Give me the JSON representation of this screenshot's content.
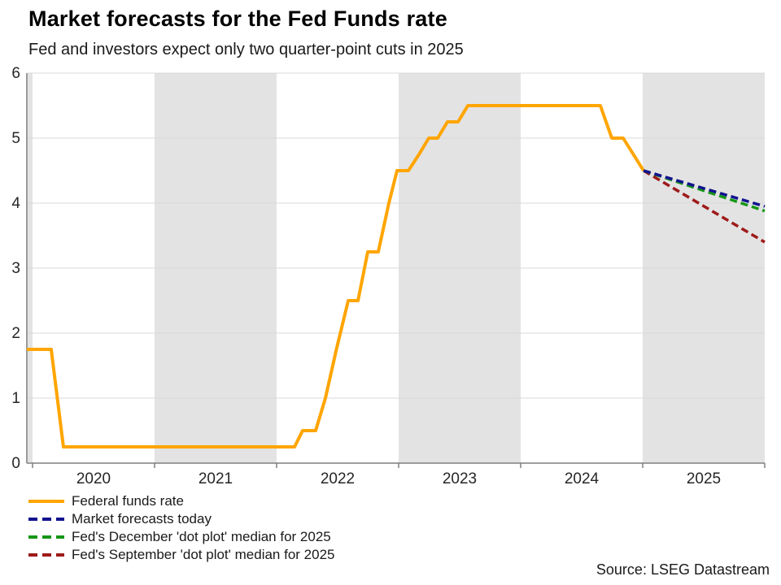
{
  "title": "Market forecasts for the Fed Funds rate",
  "subtitle": "Fed and investors expect only two quarter-point cuts in 2025",
  "source": "Source: LSEG Datastream",
  "colors": {
    "band": "#e3e3e3",
    "grid": "#d9d9d9",
    "axis": "#7f7f7f",
    "tick_text": "#262626",
    "orange": "#FFA500",
    "navy": "#12128F",
    "green": "#169616",
    "dark_red": "#9E1A1A"
  },
  "chart_data": {
    "type": "line",
    "title": "Market forecasts for the Fed Funds rate",
    "subtitle": "Fed and investors expect only two quarter-point cuts in 2025",
    "xlabel": "",
    "ylabel": "",
    "xlim": [
      2019.953,
      2026.0
    ],
    "ylim": [
      0,
      6
    ],
    "y_ticks": [
      0,
      1,
      2,
      3,
      4,
      5,
      6
    ],
    "x_tick_years": [
      2020,
      2021,
      2022,
      2023,
      2024,
      2025,
      2026
    ],
    "x_labels": [
      "2020",
      "2021",
      "2022",
      "2023",
      "2024",
      "2025"
    ],
    "grid": "horizontal",
    "legend_position": "bottom-left",
    "shaded_year_bands": [
      [
        2019.953,
        2020
      ],
      [
        2021,
        2022
      ],
      [
        2023,
        2024
      ],
      [
        2025,
        2026
      ]
    ],
    "series": [
      {
        "name": "Federal funds rate",
        "color": "#FFA500",
        "style": "solid",
        "points": [
          [
            2019.953,
            1.75
          ],
          [
            2020.153,
            1.75
          ],
          [
            2020.253,
            0.25
          ],
          [
            2022.147,
            0.25
          ],
          [
            2022.213,
            0.5
          ],
          [
            2022.32,
            0.5
          ],
          [
            2022.4,
            1.0
          ],
          [
            2022.49,
            1.75
          ],
          [
            2022.587,
            2.5
          ],
          [
            2022.667,
            2.5
          ],
          [
            2022.747,
            3.25
          ],
          [
            2022.833,
            3.25
          ],
          [
            2022.92,
            4.0
          ],
          [
            2022.987,
            4.5
          ],
          [
            2023.08,
            4.5
          ],
          [
            2023.167,
            4.75
          ],
          [
            2023.247,
            5.0
          ],
          [
            2023.32,
            5.0
          ],
          [
            2023.4,
            5.25
          ],
          [
            2023.487,
            5.25
          ],
          [
            2023.567,
            5.5
          ],
          [
            2024.653,
            5.5
          ],
          [
            2024.747,
            5.0
          ],
          [
            2024.84,
            5.0
          ],
          [
            2025.007,
            4.5
          ]
        ]
      },
      {
        "name": "Market forecasts today",
        "color": "#12128F",
        "style": "dashed",
        "points": [
          [
            2025.007,
            4.5
          ],
          [
            2026.0,
            3.95
          ]
        ]
      },
      {
        "name": "Fed's December 'dot plot' median for 2025",
        "color": "#169616",
        "style": "dashed",
        "points": [
          [
            2025.007,
            4.5
          ],
          [
            2026.0,
            3.88
          ]
        ]
      },
      {
        "name": "Fed's September 'dot plot' median for 2025",
        "color": "#9E1A1A",
        "style": "dashed",
        "points": [
          [
            2025.007,
            4.5
          ],
          [
            2026.0,
            3.4
          ]
        ]
      }
    ]
  }
}
